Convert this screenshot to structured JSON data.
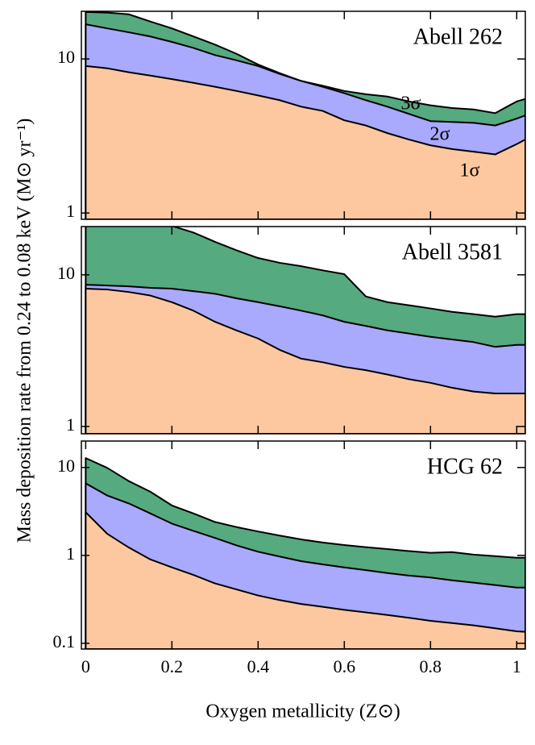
{
  "chart_data": [
    {
      "type": "area",
      "title": "Abell 262",
      "log_y": true,
      "x": [
        0,
        0.05,
        0.1,
        0.15,
        0.2,
        0.25,
        0.3,
        0.35,
        0.4,
        0.45,
        0.5,
        0.55,
        0.6,
        0.65,
        0.7,
        0.75,
        0.8,
        0.85,
        0.9,
        0.95,
        1.0,
        1.02
      ],
      "series": [
        {
          "color": "#fdc8a0",
          "values": [
            9.0,
            8.7,
            8.2,
            7.8,
            7.4,
            7.0,
            6.6,
            6.2,
            5.8,
            5.4,
            4.9,
            4.6,
            4.0,
            3.7,
            3.3,
            3.0,
            2.75,
            2.6,
            2.5,
            2.4,
            2.8,
            3.0
          ]
        },
        {
          "color": "#a9a9fd",
          "values": [
            16.8,
            15.8,
            14.9,
            14.0,
            12.9,
            11.8,
            10.6,
            9.8,
            9.0,
            8.0,
            7.2,
            6.6,
            6.0,
            5.4,
            4.9,
            4.4,
            3.95,
            3.9,
            3.85,
            3.7,
            4.1,
            4.3
          ]
        },
        {
          "color": "#55aa7f",
          "values": [
            20.2,
            20.0,
            19.5,
            17.5,
            15.8,
            14.0,
            12.4,
            10.8,
            9.2,
            8.1,
            7.2,
            6.7,
            6.2,
            5.9,
            5.7,
            5.3,
            5.0,
            4.8,
            4.7,
            4.45,
            5.3,
            5.5
          ]
        }
      ],
      "annotations": [
        "3σ",
        "2σ",
        "1σ"
      ],
      "xlim": [
        -0.01,
        1.02
      ],
      "xticks": [
        0,
        0.2,
        0.4,
        0.6,
        0.8,
        1
      ],
      "ylim": [
        0.91,
        20.4
      ],
      "yticks": [
        1,
        10
      ]
    },
    {
      "type": "area",
      "title": "Abell 3581",
      "log_y": true,
      "ylabel": "Mass deposition rate from 0.24 to 0.08 keV (M⊙ yr⁻¹)",
      "x": [
        0,
        0.05,
        0.1,
        0.15,
        0.2,
        0.25,
        0.3,
        0.35,
        0.4,
        0.45,
        0.5,
        0.55,
        0.6,
        0.65,
        0.7,
        0.75,
        0.8,
        0.85,
        0.9,
        0.95,
        1.0,
        1.02
      ],
      "series": [
        {
          "color": "#fdc8a0",
          "values": [
            8.1,
            8.0,
            7.7,
            7.3,
            6.6,
            5.8,
            4.9,
            4.3,
            3.8,
            3.2,
            2.8,
            2.65,
            2.47,
            2.35,
            2.2,
            2.05,
            1.94,
            1.8,
            1.7,
            1.65,
            1.65,
            1.65
          ]
        },
        {
          "color": "#a9a9fd",
          "values": [
            8.6,
            8.5,
            8.4,
            8.2,
            8.1,
            7.8,
            7.5,
            7.0,
            6.6,
            6.2,
            5.8,
            5.4,
            4.9,
            4.6,
            4.3,
            4.1,
            3.9,
            3.75,
            3.6,
            3.35,
            3.45,
            3.45
          ]
        },
        {
          "color": "#55aa7f",
          "values": [
            21,
            21,
            21,
            21,
            21,
            19.0,
            16.5,
            14.5,
            12.9,
            12.0,
            11.4,
            10.7,
            10.1,
            7.2,
            6.6,
            6.3,
            6.0,
            5.7,
            5.5,
            5.3,
            5.5,
            5.5
          ]
        }
      ],
      "xlim": [
        -0.01,
        1.02
      ],
      "xticks": [
        0,
        0.2,
        0.4,
        0.6,
        0.8,
        1
      ],
      "ylim": [
        0.895,
        20.8
      ],
      "yticks": [
        1,
        10
      ]
    },
    {
      "type": "area",
      "title": "HCG 62",
      "log_y": true,
      "xlabel": "Oxygen metallicity (Z⊙)",
      "x": [
        0,
        0.05,
        0.1,
        0.15,
        0.2,
        0.25,
        0.3,
        0.35,
        0.4,
        0.45,
        0.5,
        0.55,
        0.6,
        0.65,
        0.7,
        0.75,
        0.8,
        0.85,
        0.9,
        0.95,
        1.0,
        1.02
      ],
      "series": [
        {
          "color": "#fdc8a0",
          "values": [
            3.1,
            1.76,
            1.23,
            0.9,
            0.73,
            0.6,
            0.48,
            0.41,
            0.35,
            0.31,
            0.28,
            0.26,
            0.24,
            0.225,
            0.21,
            0.195,
            0.18,
            0.17,
            0.16,
            0.148,
            0.137,
            0.135
          ]
        },
        {
          "color": "#a9a9fd",
          "values": [
            6.6,
            4.8,
            3.9,
            3.0,
            2.3,
            1.9,
            1.58,
            1.3,
            1.1,
            0.97,
            0.86,
            0.79,
            0.73,
            0.68,
            0.63,
            0.59,
            0.56,
            0.52,
            0.49,
            0.46,
            0.43,
            0.43
          ]
        },
        {
          "color": "#55aa7f",
          "values": [
            12.8,
            9.9,
            7.0,
            5.3,
            3.7,
            3.0,
            2.4,
            2.1,
            1.87,
            1.68,
            1.52,
            1.4,
            1.31,
            1.24,
            1.18,
            1.12,
            1.07,
            1.09,
            1.02,
            0.98,
            0.94,
            0.94
          ]
        }
      ],
      "xlim": [
        -0.01,
        1.02
      ],
      "xticks": [
        0,
        0.2,
        0.4,
        0.6,
        0.8,
        1
      ],
      "ylim": [
        0.086,
        20
      ],
      "yticks": [
        0.1,
        1,
        10
      ]
    }
  ]
}
